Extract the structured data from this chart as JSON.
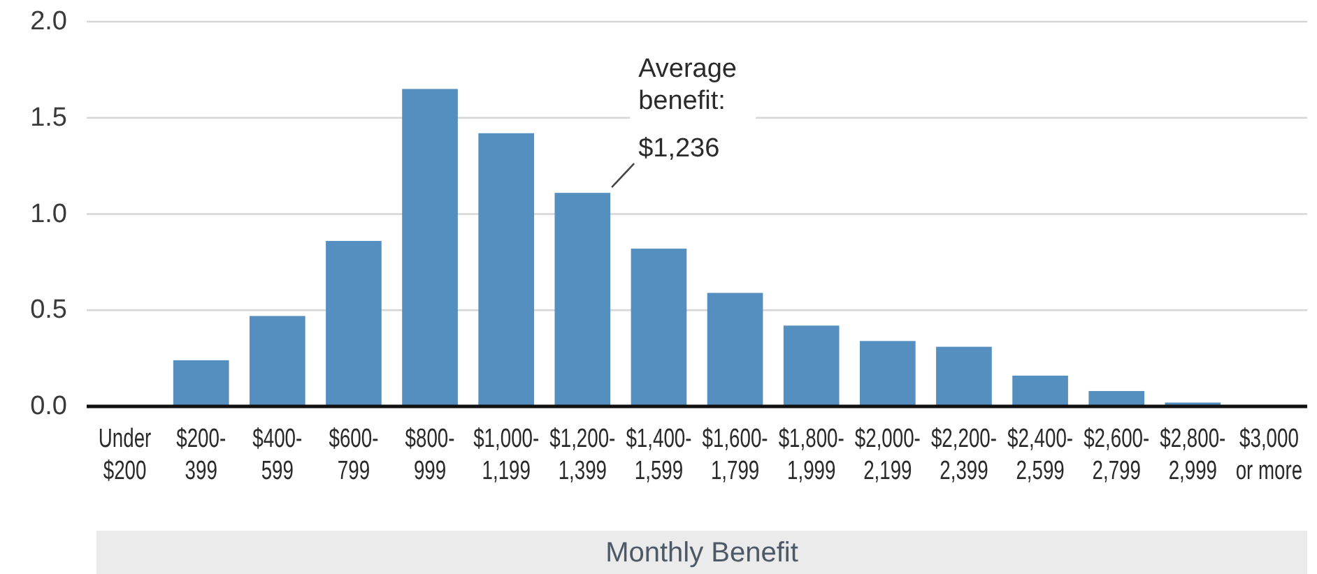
{
  "chart_data": {
    "type": "bar",
    "xlabel": "Monthly Benefit",
    "categories": [
      "Under $200",
      "$200-399",
      "$400-599",
      "$600-799",
      "$800-999",
      "$1,000-1,199",
      "$1,200-1,399",
      "$1,400-1,599",
      "$1,600-1,799",
      "$1,800-1,999",
      "$2,000-2,199",
      "$2,200-2,399",
      "$2,400-2,599",
      "$2,600-2,799",
      "$2,800-2,999",
      "$3,000 or more"
    ],
    "values": [
      0,
      0.24,
      0.47,
      0.86,
      1.65,
      1.42,
      1.11,
      0.82,
      0.59,
      0.42,
      0.34,
      0.31,
      0.16,
      0.08,
      0.02,
      0
    ],
    "color": "#558fbf",
    "ylim": [
      0,
      2
    ],
    "yticks": [
      {
        "value": 0,
        "label": "0.0"
      },
      0.5,
      {
        "value": 1,
        "label": "1.0"
      },
      1.5,
      {
        "value": 2,
        "label": "2.0"
      }
    ],
    "grid": "y",
    "annotations": [
      {
        "text": "Average benefit: $1,236",
        "x": "$1,200-1,399",
        "y": 1.11
      }
    ]
  }
}
